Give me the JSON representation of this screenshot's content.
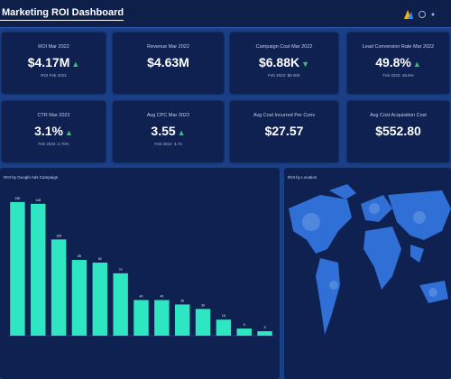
{
  "header": {
    "title": "Marketing ROI Dashboard"
  },
  "kpis": [
    {
      "label": "ROI Mar 2022",
      "value": "$4.17M",
      "sub": "ROI Feb 2022",
      "trend": "up"
    },
    {
      "label": "Revenue Mar 2022",
      "value": "$4.63M"
    },
    {
      "label": "Campaign Cost Mar 2022",
      "value": "$6.88K",
      "sub": "Feb 2022: $8.00K",
      "trend": "down"
    },
    {
      "label": "Lead Conversion Rate Mar 2022",
      "value": "49.8%",
      "sub": "Feb 2022: 48.6%",
      "trend": "up"
    },
    {
      "label": "CTR Mar 2022",
      "value": "3.1%",
      "sub": "Feb 2022: 2.70%",
      "trend": "up"
    },
    {
      "label": "Avg CPC Mar 2022",
      "value": "3.55",
      "sub": "Feb 2022: 3.73",
      "trend": "up"
    },
    {
      "label": "Avg Cost Incurred Per Conv",
      "value": "$27.57"
    },
    {
      "label": "Avg Cost Acquisition Cost",
      "value": "$552.80"
    }
  ],
  "map": {
    "title": "ROI by Location"
  },
  "chart_data": {
    "type": "bar",
    "title": "ROI by Google Ads Campaign",
    "categories": [
      null,
      null,
      null,
      null,
      null,
      null,
      null,
      null,
      null,
      null,
      null,
      null,
      null
    ],
    "values": [
      150,
      148,
      108,
      85,
      82,
      70,
      40,
      40,
      35,
      30,
      18,
      8,
      5
    ],
    "color": "#2ee6c1",
    "ylim": [
      0,
      160
    ]
  }
}
